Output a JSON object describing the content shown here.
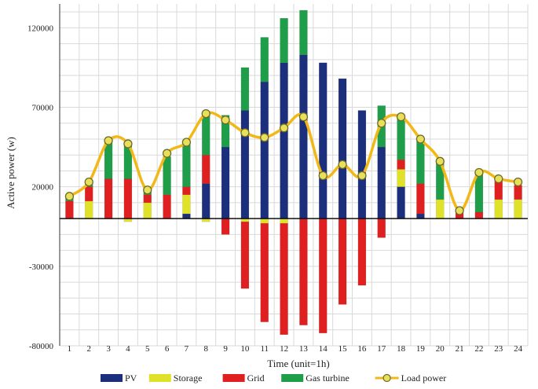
{
  "chart_data": {
    "type": "bar",
    "xlabel": "Time (unit=1h)",
    "ylabel": "Active power (w)",
    "ylim": [
      -80000,
      135000
    ],
    "yticks": [
      -80000,
      -30000,
      20000,
      70000,
      120000
    ],
    "grid": true,
    "legend_position": "bottom",
    "categories": [
      "1",
      "2",
      "3",
      "4",
      "5",
      "6",
      "7",
      "8",
      "9",
      "10",
      "11",
      "12",
      "13",
      "14",
      "15",
      "16",
      "17",
      "18",
      "19",
      "20",
      "21",
      "22",
      "23",
      "24"
    ],
    "series": [
      {
        "name": "PV",
        "type": "bar",
        "color": "#1c2f7c",
        "values": [
          0,
          0,
          0,
          0,
          0,
          0,
          3000,
          22000,
          45000,
          68000,
          86000,
          98000,
          103000,
          98000,
          88000,
          68000,
          45000,
          20000,
          3000,
          0,
          0,
          0,
          0,
          0
        ]
      },
      {
        "name": "Storage",
        "type": "bar",
        "color": "#e0e22a",
        "values": [
          0,
          11000,
          0,
          -2000,
          10000,
          0,
          12000,
          -2000,
          0,
          -2000,
          -3000,
          -3000,
          0,
          0,
          0,
          0,
          0,
          11000,
          0,
          12000,
          0,
          0,
          12000,
          12000
        ]
      },
      {
        "name": "Grid",
        "type": "bar",
        "color": "#e02020",
        "values": [
          11000,
          9000,
          25000,
          25000,
          5000,
          15000,
          5000,
          18000,
          -10000,
          -42000,
          -62000,
          -70000,
          -67000,
          -72000,
          -54000,
          -42000,
          -12000,
          6000,
          19000,
          0,
          4000,
          4000,
          12000,
          9000
        ]
      },
      {
        "name": "Gas turbine",
        "type": "bar",
        "color": "#1f9e4a",
        "values": [
          3000,
          4000,
          23000,
          23000,
          2000,
          24000,
          28000,
          26000,
          20000,
          27000,
          28000,
          28000,
          28000,
          0,
          0,
          0,
          26000,
          27000,
          27000,
          25000,
          0,
          24000,
          0,
          0
        ]
      },
      {
        "name": "Load power",
        "type": "line",
        "color": "#f2b818",
        "values": [
          14000,
          23000,
          49000,
          47000,
          18000,
          41000,
          48000,
          66000,
          62000,
          54000,
          51000,
          57000,
          64000,
          27000,
          34000,
          27000,
          60000,
          64000,
          50000,
          36000,
          5000,
          29000,
          25000,
          23000
        ]
      }
    ]
  }
}
